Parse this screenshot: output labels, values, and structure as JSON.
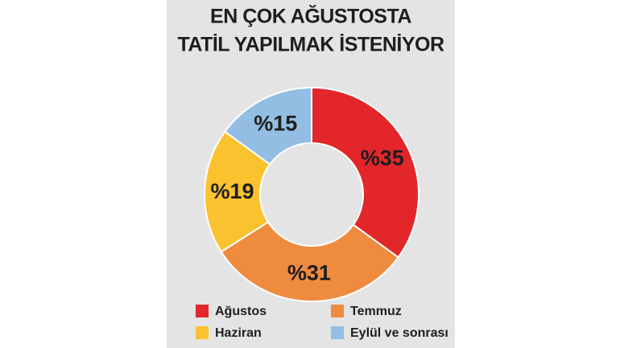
{
  "chart_data": {
    "type": "donut",
    "title": [
      "EN ÇOK AĞUSTOSTA",
      "TATİL YAPILMAK İSTENİYOR"
    ],
    "categories": [
      "Ağustos",
      "Temmuz",
      "Haziran",
      "Eylül ve sonrası"
    ],
    "values": [
      35,
      31,
      19,
      15
    ],
    "value_labels": [
      "%35",
      "%31",
      "%19",
      "%15"
    ],
    "colors": [
      "#e3262a",
      "#ef8b3f",
      "#f9c22e",
      "#93bde3"
    ]
  }
}
